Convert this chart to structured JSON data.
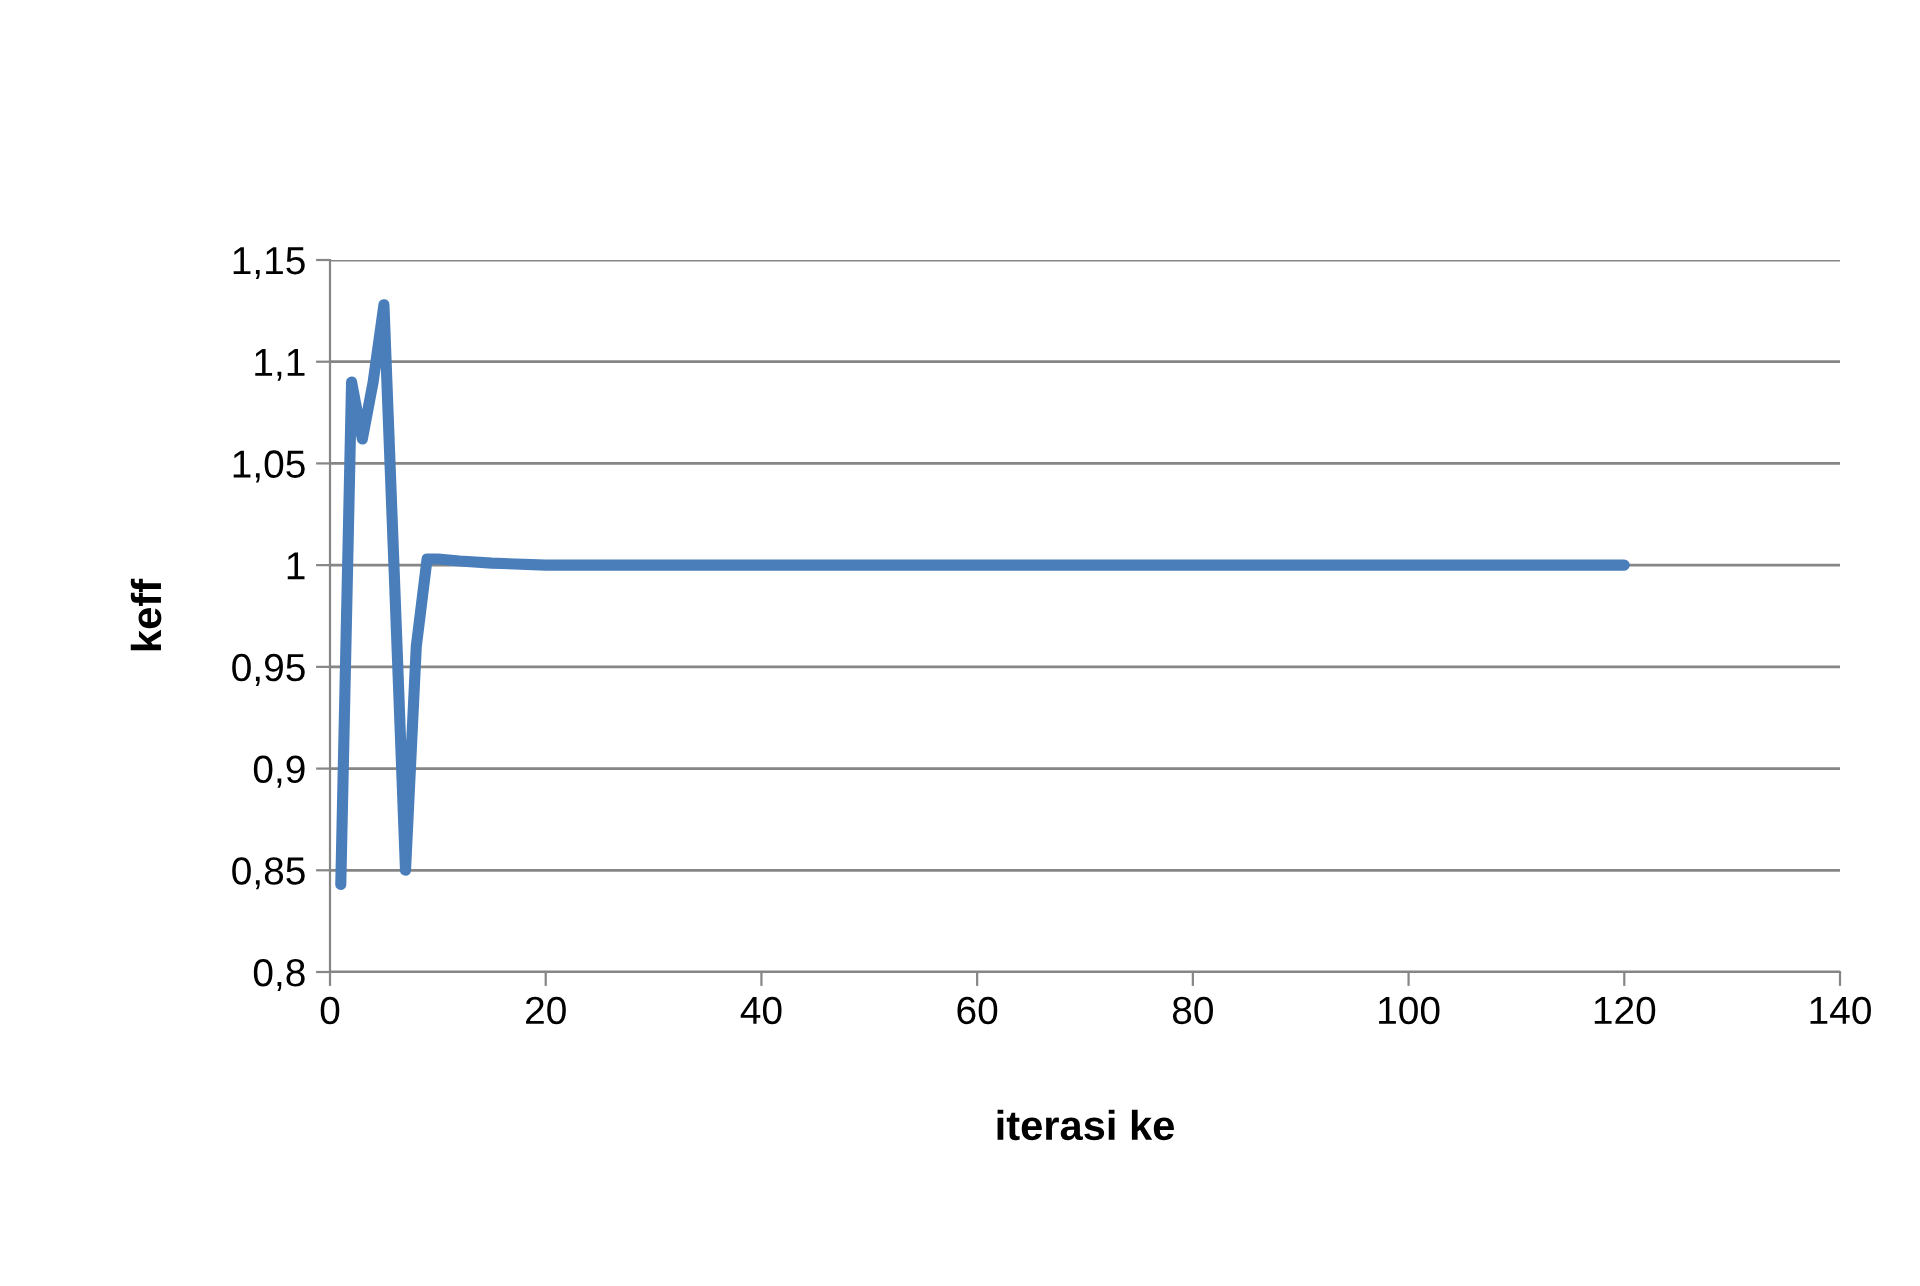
{
  "chart_data": {
    "type": "line",
    "xlabel": "iterasi ke",
    "ylabel": "keff",
    "x": [
      1,
      2,
      3,
      4,
      5,
      6,
      7,
      8,
      9,
      10,
      12,
      15,
      20,
      40,
      60,
      80,
      100,
      120
    ],
    "series": [
      {
        "color": "#4a7ebb",
        "values": [
          0.843,
          1.09,
          1.062,
          1.09,
          1.128,
          0.99,
          0.85,
          0.96,
          1.003,
          1.003,
          1.002,
          1.001,
          1.0,
          1.0,
          1.0,
          1.0,
          1.0,
          1.0
        ]
      }
    ],
    "xlim": [
      0,
      140
    ],
    "xticks": [
      0,
      20,
      40,
      60,
      80,
      100,
      120,
      140
    ],
    "ylim": [
      0.8,
      1.15
    ],
    "yticks": [
      {
        "value": 0.8,
        "label": "0,8"
      },
      {
        "value": 0.85,
        "label": "0,85"
      },
      {
        "value": 0.9,
        "label": "0,9"
      },
      {
        "value": 0.95,
        "label": "0,95"
      },
      {
        "value": 1,
        "label": "1"
      },
      {
        "value": 1.05,
        "label": "1,05"
      },
      {
        "value": 1.1,
        "label": "1,1"
      },
      {
        "value": 1.15,
        "label": "1,15"
      }
    ],
    "grid": "y",
    "marker": "none",
    "line_style": "solid"
  }
}
